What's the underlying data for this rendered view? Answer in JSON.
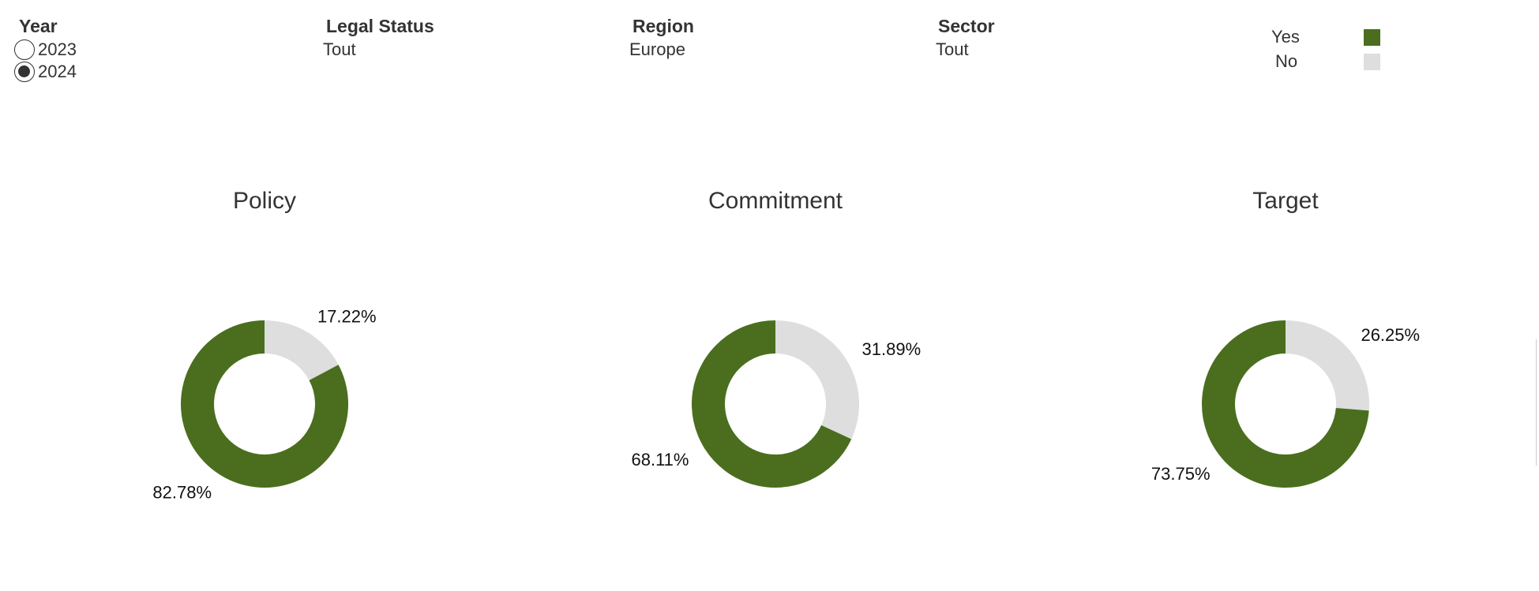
{
  "filters": {
    "year": {
      "title": "Year",
      "options": [
        {
          "label": "2023",
          "selected": false
        },
        {
          "label": "2024",
          "selected": true
        }
      ]
    },
    "legal_status": {
      "title": "Legal Status",
      "value": "Tout"
    },
    "region": {
      "title": "Region",
      "value": "Europe"
    },
    "sector": {
      "title": "Sector",
      "value": "Tout"
    }
  },
  "legend": {
    "yes_label": "Yes",
    "no_label": "No",
    "yes_color": "#4a6e1e",
    "no_color": "#dddedd"
  },
  "chart_data": [
    {
      "type": "pie",
      "title": "Policy",
      "slices": [
        {
          "label": "Yes",
          "value": 82.78,
          "display": "82.78%"
        },
        {
          "label": "No",
          "value": 17.22,
          "display": "17.22%"
        }
      ]
    },
    {
      "type": "pie",
      "title": "Commitment",
      "slices": [
        {
          "label": "Yes",
          "value": 68.11,
          "display": "68.11%"
        },
        {
          "label": "No",
          "value": 31.89,
          "display": "31.89%"
        }
      ]
    },
    {
      "type": "pie",
      "title": "Target",
      "slices": [
        {
          "label": "Yes",
          "value": 73.75,
          "display": "73.75%"
        },
        {
          "label": "No",
          "value": 26.25,
          "display": "26.25%"
        }
      ]
    }
  ]
}
